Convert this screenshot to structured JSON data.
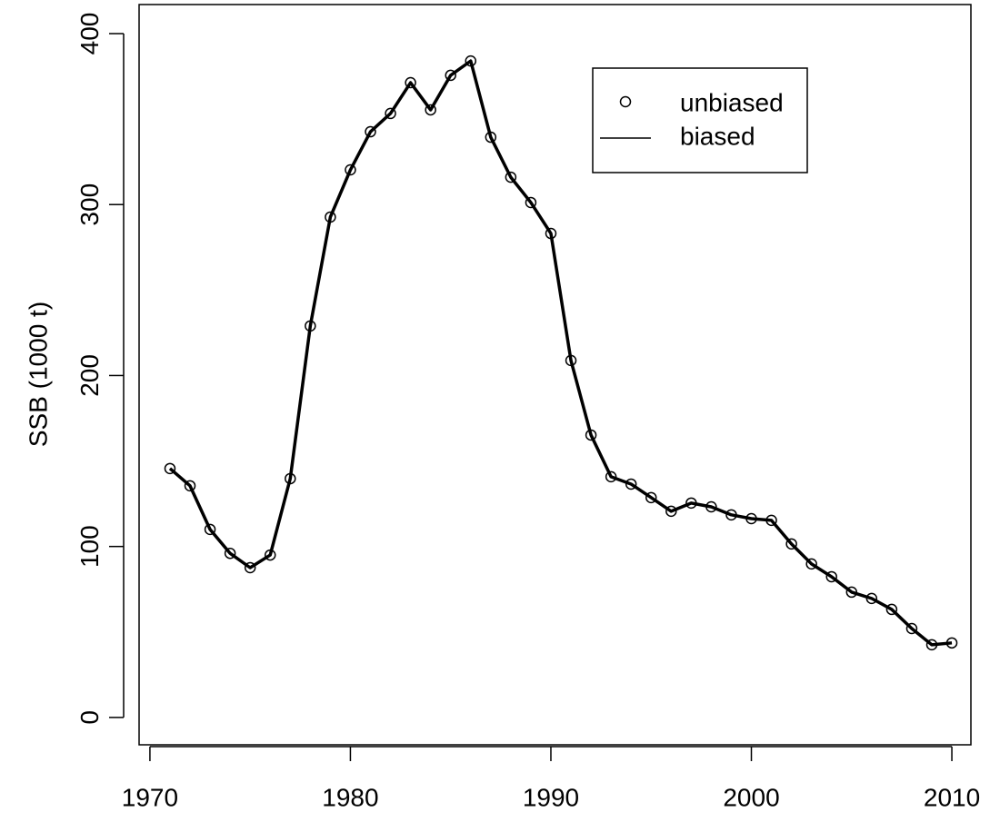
{
  "chart_data": {
    "type": "line",
    "y_label": "SSB (1000 t)",
    "x": [
      1971,
      1972,
      1973,
      1974,
      1975,
      1976,
      1977,
      1978,
      1979,
      1980,
      1981,
      1982,
      1983,
      1984,
      1985,
      1986,
      1987,
      1988,
      1989,
      1990,
      1991,
      1992,
      1993,
      1994,
      1995,
      1996,
      1997,
      1998,
      1999,
      2000,
      2001,
      2002,
      2003,
      2004,
      2005,
      2006,
      2007,
      2008,
      2009,
      2010
    ],
    "series": [
      {
        "name": "unbiased",
        "color": "#000000",
        "mode": "markers",
        "values": [
          145.6,
          135.5,
          110,
          96,
          87.6,
          95,
          139.7,
          229,
          292.7,
          320.3,
          342.6,
          353.3,
          371.3,
          355.4,
          375.6,
          384,
          339.4,
          316,
          301.2,
          283.1,
          208.8,
          165.2,
          140.8,
          136.5,
          128.6,
          120.6,
          125.4,
          123.2,
          118.5,
          116.3,
          115.3,
          101.5,
          89.8,
          82.3,
          73.3,
          69.6,
          63.2,
          52,
          42.5,
          43.6
        ]
      },
      {
        "name": "biased",
        "color": "#000000",
        "mode": "line",
        "values": [
          145.6,
          135.5,
          110,
          96,
          87.6,
          95,
          139.7,
          229,
          292.7,
          320.3,
          342.6,
          353.3,
          371.3,
          355.4,
          375.6,
          384,
          339.4,
          316,
          301.2,
          283.1,
          208.8,
          165.2,
          140.8,
          136.5,
          128.6,
          120.6,
          125.4,
          123.2,
          118.5,
          116.3,
          115.3,
          101.5,
          89.8,
          82.3,
          73.3,
          69.6,
          63.2,
          52,
          42.5,
          43.6
        ]
      }
    ],
    "xlim": [
      1969.46,
      2010.95
    ],
    "ylim": [
      -16,
      417
    ],
    "xticks": [
      1970,
      1980,
      1990,
      2000,
      2010
    ],
    "yticks": [
      0,
      100,
      200,
      300,
      400
    ],
    "legend": "top-right"
  }
}
